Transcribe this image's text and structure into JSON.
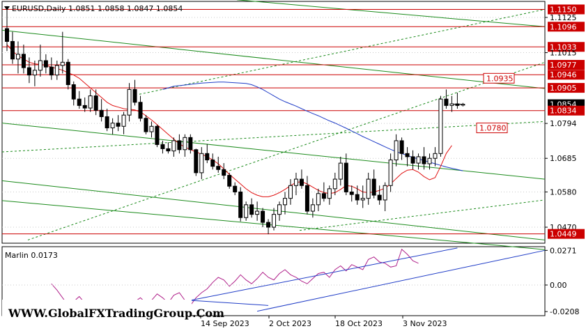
{
  "window": {
    "symbol_line": "EURUSD,Daily  1.0851  1.0858  1.0847  1.0854"
  },
  "indicator": {
    "label": "Marlin 0.0173"
  },
  "watermark": "WWW.GlobalFXTradingGroup.Com",
  "colors": {
    "up_candle": "#ffffff",
    "down_candle": "#000000",
    "ma_blue": "#1f3cc7",
    "ma_red": "#e01010",
    "channel_green": "#1a8a1a",
    "level_red": "#cc0000",
    "osc_magenta": "#b0208a",
    "osc_channel": "#1f3cc7"
  },
  "chart_data": [
    {
      "type": "candlestick",
      "title": "EURUSD,Daily",
      "ohlc_header": {
        "open": 1.0851,
        "high": 1.0858,
        "low": 1.0847,
        "close": 1.0854
      },
      "ylim": [
        1.042,
        1.1175
      ],
      "y_ticks": [
        "1.1150",
        "1.1125",
        "1.1096",
        "1.1033",
        "1.1015",
        "1.0977",
        "1.0946",
        "1.0935",
        "1.0905",
        "1.0854",
        "1.0834",
        "1.0794",
        "1.0780",
        "1.0685",
        "1.0580",
        "1.0470",
        "1.0449"
      ],
      "plain_ticks": [
        "1.1125",
        "1.1015",
        "1.0794",
        "1.0685",
        "1.0580",
        "1.0470"
      ],
      "level_lines": [
        "1.1150",
        "1.1096",
        "1.1033",
        "1.0977",
        "1.0946",
        "1.0905",
        "1.0834",
        "1.0449"
      ],
      "current_price": "1.0854",
      "annotations": [
        "1.0935",
        "1.0780"
      ],
      "x_labels": [
        "14 Sep 2023",
        "2 Oct 2023",
        "18 Oct 2023",
        "3 Nov 2023"
      ],
      "candles": [
        [
          1.109,
          1.116,
          1.102,
          1.105
        ],
        [
          1.105,
          1.108,
          1.098,
          1.0995
        ],
        [
          1.0995,
          1.105,
          1.095,
          1.101
        ],
        [
          1.101,
          1.104,
          1.095,
          1.0968
        ],
        [
          1.0968,
          1.1,
          1.092,
          1.0945
        ],
        [
          1.0945,
          1.099,
          1.091,
          1.096
        ],
        [
          1.096,
          1.104,
          1.094,
          1.099
        ],
        [
          1.099,
          1.101,
          1.095,
          1.097
        ],
        [
          1.097,
          1.1,
          1.093,
          1.0945
        ],
        [
          1.0945,
          1.099,
          1.093,
          1.0975
        ],
        [
          1.0975,
          1.108,
          1.095,
          1.0985
        ],
        [
          1.0985,
          1.0995,
          1.09,
          1.0915
        ],
        [
          1.0915,
          1.0925,
          1.085,
          1.087
        ],
        [
          1.087,
          1.0895,
          1.084,
          1.085
        ],
        [
          1.085,
          1.0875,
          1.083,
          1.0842
        ],
        [
          1.0842,
          1.09,
          1.083,
          1.088
        ],
        [
          1.088,
          1.09,
          1.082,
          1.0835
        ],
        [
          1.0835,
          1.087,
          1.08,
          1.0815
        ],
        [
          1.0815,
          1.084,
          1.077,
          1.078
        ],
        [
          1.078,
          1.081,
          1.076,
          1.0795
        ],
        [
          1.0795,
          1.082,
          1.077,
          1.0785
        ],
        [
          1.0785,
          1.083,
          1.076,
          1.082
        ],
        [
          1.082,
          1.092,
          1.08,
          1.09
        ],
        [
          1.09,
          1.093,
          1.085,
          1.086
        ],
        [
          1.086,
          1.088,
          1.08,
          1.081
        ],
        [
          1.081,
          1.082,
          1.076,
          1.0768
        ],
        [
          1.0768,
          1.08,
          1.075,
          1.0785
        ],
        [
          1.0785,
          1.079,
          1.072,
          1.0728
        ],
        [
          1.0728,
          1.074,
          1.07,
          1.0715
        ],
        [
          1.0715,
          1.0735,
          1.07,
          1.0708
        ],
        [
          1.0708,
          1.075,
          1.069,
          1.074
        ],
        [
          1.074,
          1.076,
          1.07,
          1.0712
        ],
        [
          1.0712,
          1.076,
          1.069,
          1.075
        ],
        [
          1.075,
          1.076,
          1.07,
          1.0712
        ],
        [
          1.0712,
          1.0715,
          1.063,
          1.064
        ],
        [
          1.064,
          1.072,
          1.062,
          1.07
        ],
        [
          1.07,
          1.073,
          1.067,
          1.068
        ],
        [
          1.068,
          1.07,
          1.065,
          1.066
        ],
        [
          1.066,
          1.069,
          1.064,
          1.065
        ],
        [
          1.065,
          1.067,
          1.062,
          1.0632
        ],
        [
          1.0632,
          1.064,
          1.059,
          1.0598
        ],
        [
          1.0598,
          1.061,
          1.057,
          1.058
        ],
        [
          1.058,
          1.0595,
          1.0488,
          1.05
        ],
        [
          1.05,
          1.055,
          1.049,
          1.054
        ],
        [
          1.054,
          1.056,
          1.05,
          1.051
        ],
        [
          1.051,
          1.055,
          1.049,
          1.052
        ],
        [
          1.052,
          1.053,
          1.047,
          1.0485
        ],
        [
          1.0485,
          1.0495,
          1.0448,
          1.047
        ],
        [
          1.047,
          1.053,
          1.046,
          1.051
        ],
        [
          1.051,
          1.055,
          1.049,
          1.054
        ],
        [
          1.054,
          1.058,
          1.051,
          1.056
        ],
        [
          1.056,
          1.062,
          1.054,
          1.06
        ],
        [
          1.06,
          1.064,
          1.057,
          1.062
        ],
        [
          1.062,
          1.065,
          1.059,
          1.06
        ],
        [
          1.06,
          1.063,
          1.051,
          1.052
        ],
        [
          1.052,
          1.056,
          1.05,
          1.054
        ],
        [
          1.054,
          1.059,
          1.052,
          1.0575
        ],
        [
          1.0575,
          1.061,
          1.055,
          1.056
        ],
        [
          1.056,
          1.06,
          1.054,
          1.059
        ],
        [
          1.059,
          1.064,
          1.057,
          1.062
        ],
        [
          1.062,
          1.069,
          1.06,
          1.067
        ],
        [
          1.067,
          1.07,
          1.057,
          1.058
        ],
        [
          1.058,
          1.06,
          1.055,
          1.0572
        ],
        [
          1.0572,
          1.06,
          1.054,
          1.0555
        ],
        [
          1.0555,
          1.06,
          1.053,
          1.056
        ],
        [
          1.056,
          1.064,
          1.054,
          1.062
        ],
        [
          1.062,
          1.065,
          1.056,
          1.057
        ],
        [
          1.057,
          1.06,
          1.054,
          1.0555
        ],
        [
          1.0555,
          1.061,
          1.052,
          1.06
        ],
        [
          1.06,
          1.07,
          1.058,
          1.068
        ],
        [
          1.068,
          1.076,
          1.066,
          1.074
        ],
        [
          1.074,
          1.075,
          1.068,
          1.07
        ],
        [
          1.07,
          1.072,
          1.066,
          1.069
        ],
        [
          1.069,
          1.071,
          1.065,
          1.067
        ],
        [
          1.067,
          1.07,
          1.065,
          1.069
        ],
        [
          1.069,
          1.072,
          1.065,
          1.0668
        ],
        [
          1.0668,
          1.07,
          1.065,
          1.0685
        ],
        [
          1.0685,
          1.072,
          1.066,
          1.07
        ],
        [
          1.07,
          1.088,
          1.069,
          1.087
        ],
        [
          1.087,
          1.09,
          1.084,
          1.085
        ],
        [
          1.085,
          1.088,
          1.083,
          1.0855
        ],
        [
          1.0855,
          1.089,
          1.084,
          1.085
        ],
        [
          1.0851,
          1.0858,
          1.0847,
          1.0854
        ]
      ],
      "ma_blue": [
        1.09,
        1.0905,
        1.091,
        1.0912,
        1.0914,
        1.0916,
        1.0918,
        1.092,
        1.0921,
        1.0922,
        1.0923,
        1.0923,
        1.0922,
        1.0921,
        1.092,
        1.0919,
        1.0915,
        1.0908,
        1.09,
        1.089,
        1.088,
        1.087,
        1.0862,
        1.0855,
        1.0848,
        1.084,
        1.0832,
        1.0825,
        1.0818,
        1.081,
        1.0802,
        1.0795,
        1.0787,
        1.0779,
        1.077,
        1.0762,
        1.0753,
        1.0745,
        1.0737,
        1.0729,
        1.0721,
        1.0713,
        1.0706,
        1.07,
        1.0694,
        1.0688,
        1.0683,
        1.0678,
        1.0673,
        1.0668,
        1.0663,
        1.0658,
        1.0654,
        1.065,
        1.0646
      ],
      "ma_blue_start": 28,
      "ma_red": [
        1.104,
        1.102,
        1.1005,
        1.0995,
        1.0985,
        1.098,
        1.0978,
        1.0975,
        1.097,
        1.0965,
        1.096,
        1.0952,
        1.0945,
        1.0935,
        1.092,
        1.0905,
        1.089,
        1.0875,
        1.086,
        1.085,
        1.0845,
        1.084,
        1.0838,
        1.0836,
        1.083,
        1.0818,
        1.0805,
        1.079,
        1.0775,
        1.076,
        1.0745,
        1.073,
        1.072,
        1.0712,
        1.0705,
        1.0698,
        1.069,
        1.068,
        1.0668,
        1.0652,
        1.0635,
        1.062,
        1.0605,
        1.059,
        1.0578,
        1.057,
        1.0565,
        1.0565,
        1.057,
        1.0578,
        1.0588,
        1.06,
        1.061,
        1.0612,
        1.0605,
        1.0595,
        1.0585,
        1.0578,
        1.0575,
        1.0578,
        1.0588,
        1.06,
        1.0598,
        1.059,
        1.058,
        1.0578,
        1.058,
        1.0585,
        1.0592,
        1.0605,
        1.0622,
        1.0638,
        1.0648,
        1.065,
        1.0642,
        1.0628,
        1.0618,
        1.0625,
        1.066,
        1.07,
        1.0725
      ],
      "ma_red_start": 0
    },
    {
      "type": "line",
      "title": "Marlin 0.0173",
      "ylim": [
        -0.024,
        0.03
      ],
      "y_ticks": [
        "0.0271",
        "0.00",
        "-0.0208"
      ],
      "series": [
        {
          "name": "Marlin",
          "values": [
            0.001,
            -0.004,
            -0.01,
            -0.016,
            -0.013,
            -0.009,
            -0.014,
            -0.02,
            -0.017,
            -0.012,
            -0.016,
            -0.021,
            -0.018,
            -0.015,
            -0.019,
            -0.013,
            -0.01,
            -0.014,
            -0.012,
            -0.007,
            -0.01,
            -0.014,
            -0.008,
            -0.006,
            -0.012,
            -0.016,
            -0.01,
            -0.006,
            -0.003,
            0.002,
            0.006,
            0.004,
            -0.001,
            0.003,
            0.008,
            0.004,
            0.001,
            0.005,
            0.01,
            0.006,
            0.004,
            0.009,
            0.012,
            0.008,
            0.006,
            0.003,
            0.001,
            0.005,
            0.009,
            0.01,
            0.006,
            0.012,
            0.015,
            0.011,
            0.016,
            0.014,
            0.012,
            0.02,
            0.022,
            0.018,
            0.017,
            0.014,
            0.015,
            0.028,
            0.024,
            0.019,
            0.017
          ]
        }
      ],
      "series_start": 8
    }
  ]
}
